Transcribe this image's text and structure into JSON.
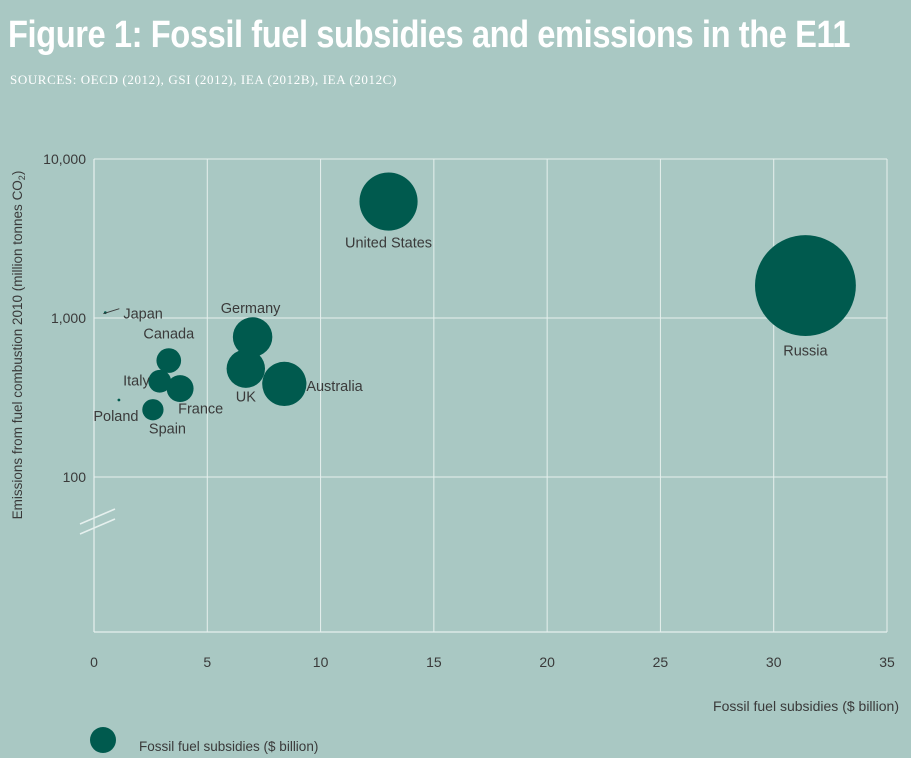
{
  "figure": {
    "title": "Figure 1: Fossil fuel subsidies and emissions in the E11",
    "sources": "SOURCES: OECD (2012), GSI (2012), IEA (2012B), IEA (2012C)"
  },
  "chart_data": {
    "type": "scatter",
    "bubble": true,
    "xlabel": "Fossil fuel subsidies ($ billion)",
    "ylabel": "Emissions from fuel combustion 2010 (million tonnes CO",
    "ylabel_sub": "2",
    "ylabel_close": ")",
    "xlim": [
      0,
      35
    ],
    "ylim": [
      100,
      10000
    ],
    "y_scale": "log",
    "axis_break": true,
    "grid": true,
    "x_ticks": [
      0,
      5,
      10,
      15,
      20,
      25,
      30,
      35
    ],
    "x_tick_labels": [
      "0",
      "5",
      "10",
      "15",
      "20",
      "25",
      "30",
      "35"
    ],
    "y_ticks": [
      100,
      1000,
      10000
    ],
    "y_tick_labels": [
      "100",
      "1,000",
      "10,000"
    ],
    "legend": {
      "label": "Fossil fuel subsidies ($ billion)",
      "position": "bottom-left"
    },
    "colors": {
      "bubble": "#005a4e",
      "grid": "#e6f0ee",
      "text": "#3a3a3a",
      "background": "#a9c8c3"
    },
    "points": [
      {
        "label": "United States",
        "x": 13.0,
        "y": 5400
      },
      {
        "label": "Russia",
        "x": 31.4,
        "y": 1600
      },
      {
        "label": "Japan",
        "x": 0.5,
        "y": 1080
      },
      {
        "label": "Germany",
        "x": 7.0,
        "y": 760
      },
      {
        "label": "Canada",
        "x": 3.3,
        "y": 540
      },
      {
        "label": "UK",
        "x": 6.7,
        "y": 480
      },
      {
        "label": "Italy",
        "x": 2.9,
        "y": 400
      },
      {
        "label": "Australia",
        "x": 8.4,
        "y": 385
      },
      {
        "label": "France",
        "x": 3.8,
        "y": 360
      },
      {
        "label": "Poland",
        "x": 1.1,
        "y": 305
      },
      {
        "label": "Spain",
        "x": 2.6,
        "y": 265
      }
    ]
  }
}
